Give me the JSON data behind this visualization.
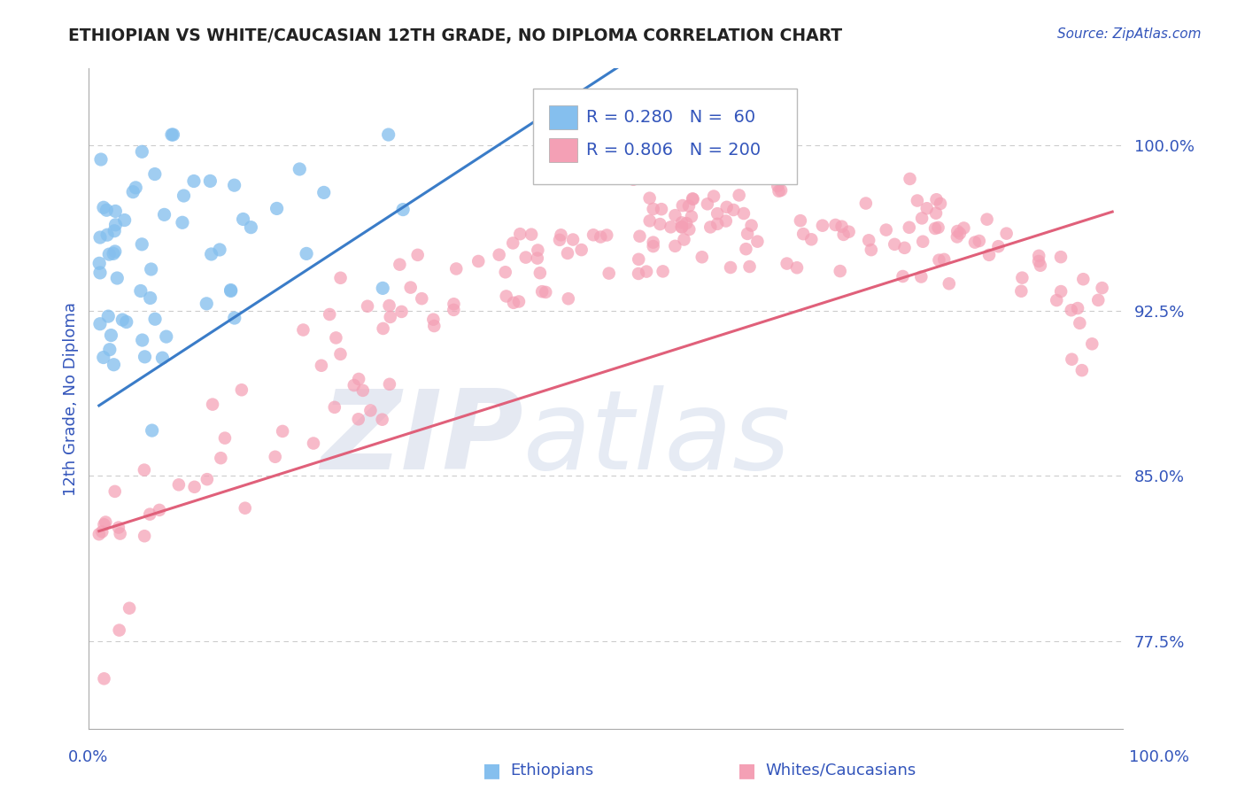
{
  "title": "ETHIOPIAN VS WHITE/CAUCASIAN 12TH GRADE, NO DIPLOMA CORRELATION CHART",
  "source_text": "Source: ZipAtlas.com",
  "ylabel": "12th Grade, No Diploma",
  "ytick_display": [
    0.775,
    0.85,
    0.925,
    1.0
  ],
  "ytick_display_labels": [
    "77.5%",
    "85.0%",
    "92.5%",
    "100.0%"
  ],
  "ylim": [
    0.735,
    1.035
  ],
  "xlim": [
    -0.01,
    1.01
  ],
  "blue_R": 0.28,
  "blue_N": 60,
  "pink_R": 0.806,
  "pink_N": 200,
  "blue_color": "#85BFEE",
  "pink_color": "#F4A0B5",
  "blue_line_color": "#3A7CC8",
  "pink_line_color": "#E0607A",
  "text_color": "#3355BB",
  "background_color": "#FFFFFF",
  "grid_color": "#CCCCCC",
  "watermark_color": "#E0E8F5"
}
